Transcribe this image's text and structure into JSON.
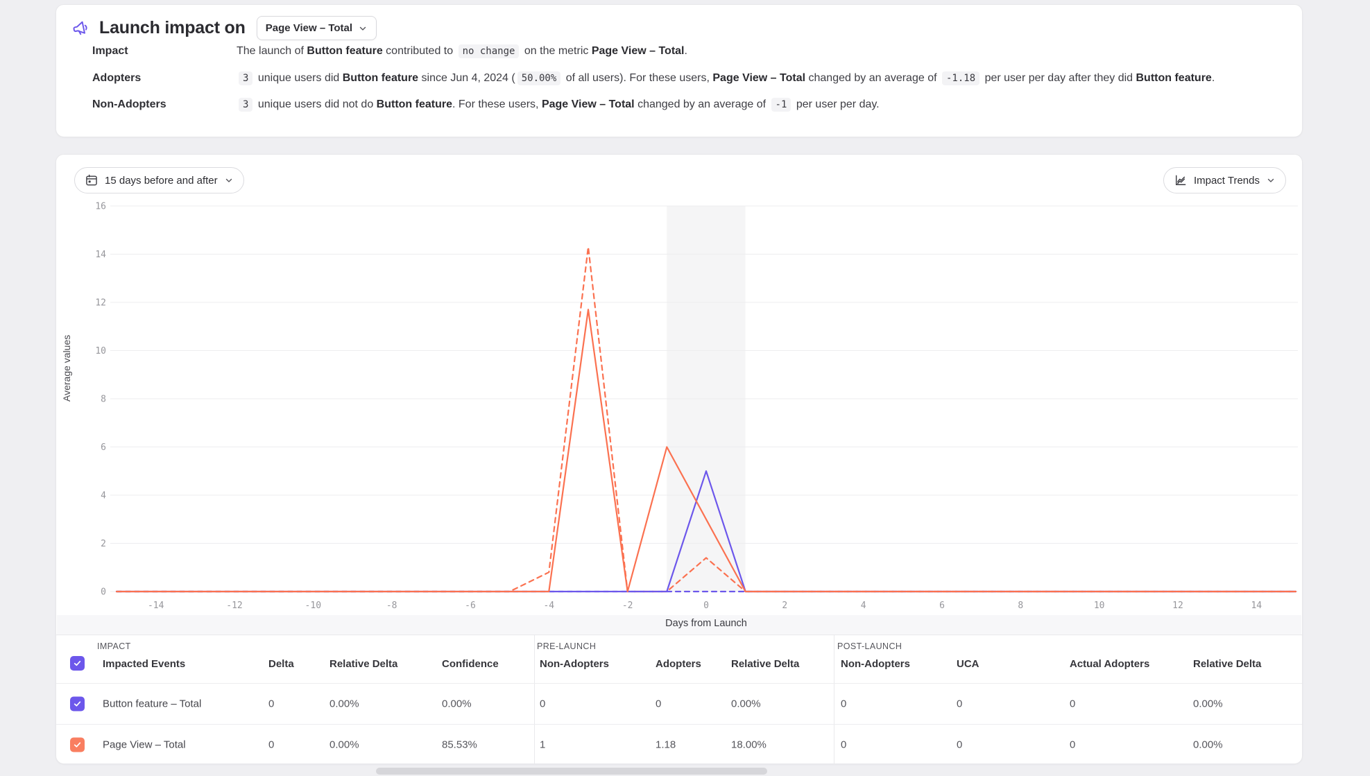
{
  "header": {
    "title": "Launch impact on",
    "metric_selector": "Page View – Total",
    "rows": [
      {
        "label": "Impact",
        "segments": [
          {
            "t": "The launch of "
          },
          {
            "t": "Button feature",
            "s": "b"
          },
          {
            "t": " contributed to "
          },
          {
            "t": "no change",
            "s": "chip"
          },
          {
            "t": " on the metric "
          },
          {
            "t": "Page View – Total",
            "s": "b"
          },
          {
            "t": "."
          }
        ]
      },
      {
        "label": "Adopters",
        "segments": [
          {
            "t": "3",
            "s": "chip"
          },
          {
            "t": " unique users did "
          },
          {
            "t": "Button feature",
            "s": "b"
          },
          {
            "t": " since Jun 4, 2024 ("
          },
          {
            "t": "50.00%",
            "s": "chip"
          },
          {
            "t": " of all users). For these users, "
          },
          {
            "t": "Page View – Total",
            "s": "b"
          },
          {
            "t": " changed by an average of "
          },
          {
            "t": "-1.18",
            "s": "chip"
          },
          {
            "t": " per user per day after they did "
          },
          {
            "t": "Button feature",
            "s": "b"
          },
          {
            "t": "."
          }
        ]
      },
      {
        "label": "Non-Adopters",
        "segments": [
          {
            "t": "3",
            "s": "chip"
          },
          {
            "t": " unique users did not do "
          },
          {
            "t": "Button feature",
            "s": "b"
          },
          {
            "t": ". For these users, "
          },
          {
            "t": "Page View – Total",
            "s": "b"
          },
          {
            "t": " changed by an average of "
          },
          {
            "t": "-1",
            "s": "chip"
          },
          {
            "t": " per user per day."
          }
        ]
      }
    ]
  },
  "controls": {
    "date_range": "15 days before and after",
    "view_mode": "Impact Trends"
  },
  "colors": {
    "accent_purple": "#6C57EB",
    "accent_orange": "#FB7150"
  },
  "chart_data": {
    "type": "line",
    "title": "",
    "xlabel": "Days from Launch",
    "ylabel": "Average values",
    "xlim": [
      -15,
      15
    ],
    "ylim": [
      0,
      16
    ],
    "xticks": [
      -14,
      -12,
      -10,
      -8,
      -6,
      -4,
      -2,
      0,
      2,
      4,
      6,
      8,
      10,
      12,
      14
    ],
    "yticks": [
      0,
      2,
      4,
      6,
      8,
      10,
      12,
      14,
      16
    ],
    "grid": "horizontal",
    "legend": "none",
    "launch_window": [
      -1,
      1
    ],
    "launch_window_color": "#F5F5F6",
    "x_days": [
      -15,
      -14,
      -13,
      -12,
      -11,
      -10,
      -9,
      -8,
      -7,
      -6,
      -5,
      -4,
      -3,
      -2,
      -1,
      0,
      1,
      2,
      3,
      4,
      5,
      6,
      7,
      8,
      9,
      10,
      11,
      12,
      13,
      14,
      15
    ],
    "series": [
      {
        "name": "Button feature – Total · Non-Adopters",
        "color": "#6C57EB",
        "dashed": true,
        "values": [
          0,
          0,
          0,
          0,
          0,
          0,
          0,
          0,
          0,
          0,
          0,
          0,
          0,
          0,
          0,
          0,
          0,
          0,
          0,
          0,
          0,
          0,
          0,
          0,
          0,
          0,
          0,
          0,
          0,
          0,
          0
        ]
      },
      {
        "name": "Page View – Total · Non-Adopters",
        "color": "#FB7150",
        "dashed": true,
        "values": [
          0,
          0,
          0,
          0,
          0,
          0,
          0,
          0,
          0,
          0,
          0,
          0.8,
          14.3,
          0,
          0,
          1.4,
          0,
          0,
          0,
          0,
          0,
          0,
          0,
          0,
          0,
          0,
          0,
          0,
          0,
          0,
          0
        ]
      },
      {
        "name": "Button feature – Total · Adopters",
        "color": "#6C57EB",
        "dashed": false,
        "values": [
          0,
          0,
          0,
          0,
          0,
          0,
          0,
          0,
          0,
          0,
          0,
          0,
          0,
          0,
          0,
          5,
          0,
          0,
          0,
          0,
          0,
          0,
          0,
          0,
          0,
          0,
          0,
          0,
          0,
          0,
          0
        ]
      },
      {
        "name": "Page View – Total · Adopters",
        "color": "#FB7150",
        "dashed": false,
        "values": [
          0,
          0,
          0,
          0,
          0,
          0,
          0,
          0,
          0,
          0,
          0,
          0,
          11.7,
          0,
          6,
          3,
          0,
          0,
          0,
          0,
          0,
          0,
          0,
          0,
          0,
          0,
          0,
          0,
          0,
          0,
          0
        ]
      }
    ]
  },
  "table": {
    "groups": [
      "IMPACT",
      "PRE-LAUNCH",
      "POST-LAUNCH"
    ],
    "columns": [
      "Impacted Events",
      "Delta",
      "Relative Delta",
      "Confidence",
      "Non-Adopters",
      "Adopters",
      "Relative Delta",
      "Non-Adopters",
      "UCA",
      "Actual Adopters",
      "Relative Delta"
    ],
    "header_checkbox_color": "#6C57EB",
    "rows": [
      {
        "event": "Button feature – Total",
        "color": "#6C57EB",
        "checked": true,
        "cells": [
          "0",
          "0.00%",
          "0.00%",
          "0",
          "0",
          "0.00%",
          "0",
          "0",
          "0",
          "0.00%"
        ]
      },
      {
        "event": "Page View – Total",
        "color": "#F97E60",
        "checked": true,
        "cells": [
          "0",
          "0.00%",
          "85.53%",
          "1",
          "1.18",
          "18.00%",
          "0",
          "0",
          "0",
          "0.00%"
        ]
      }
    ]
  }
}
